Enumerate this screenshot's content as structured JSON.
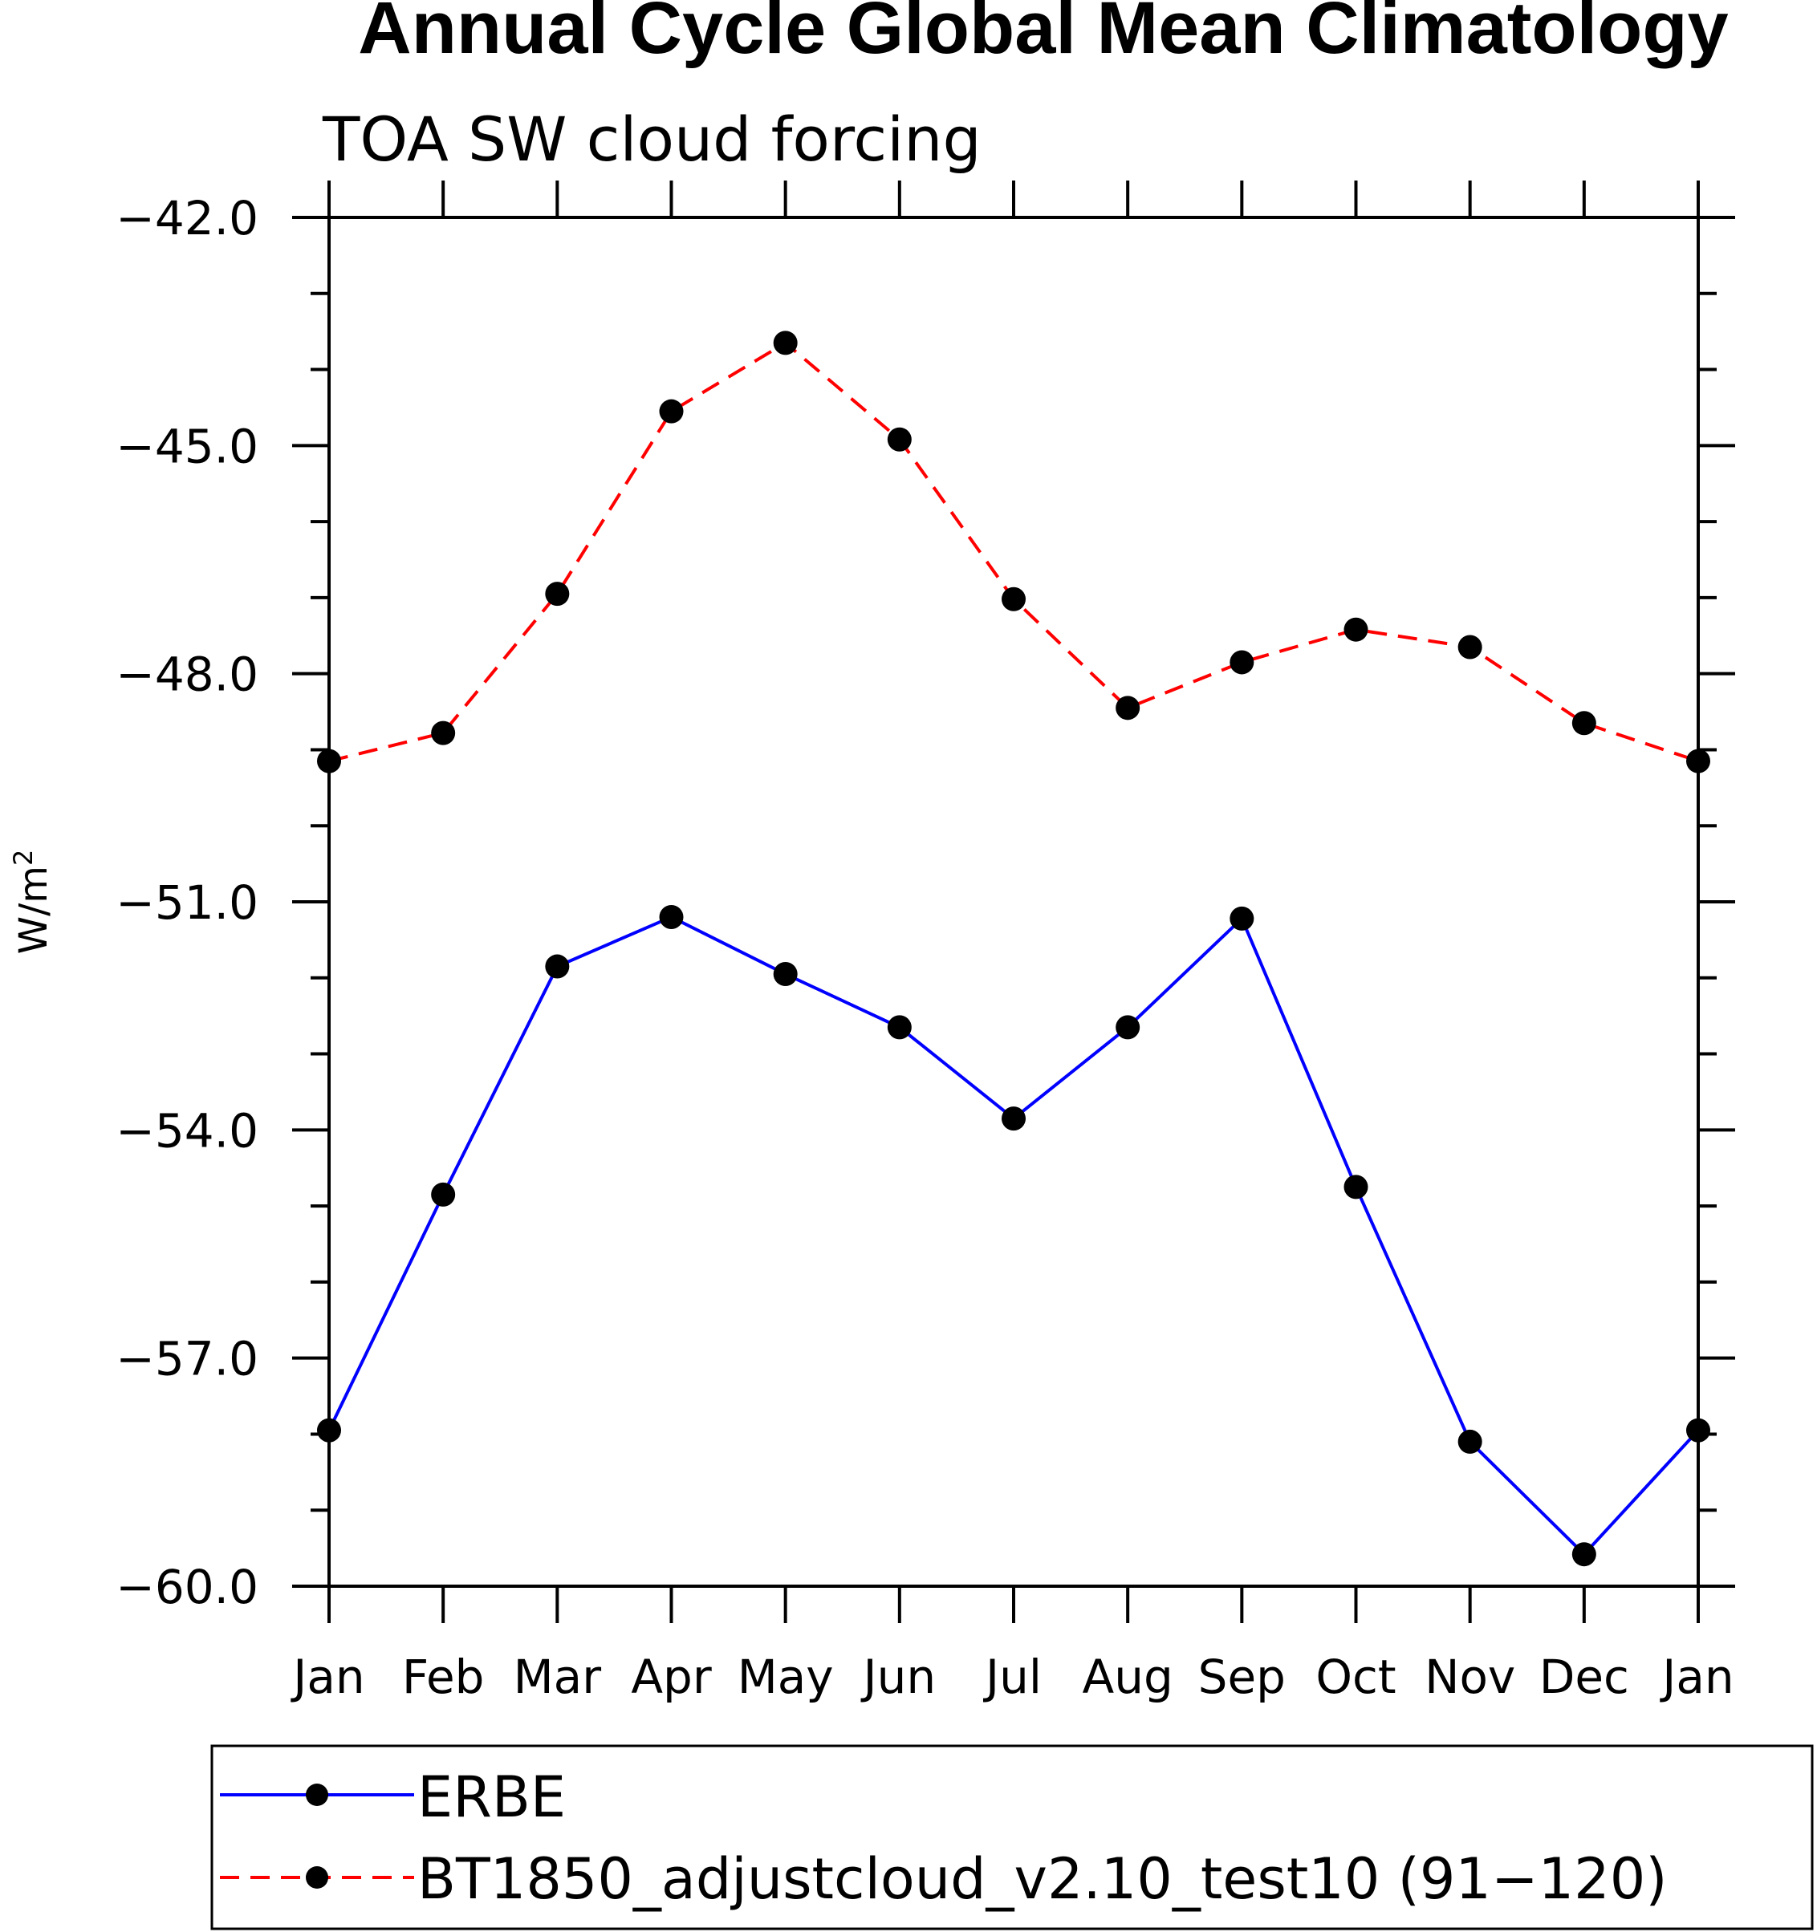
{
  "chart_data": {
    "type": "line",
    "title": "Annual Cycle Global Mean Climatology",
    "subtitle": "TOA SW cloud forcing",
    "xlabel": "",
    "ylabel": "W/m",
    "ylabel_superscript": "2",
    "categories": [
      "Jan",
      "Feb",
      "Mar",
      "Apr",
      "May",
      "Jun",
      "Jul",
      "Aug",
      "Sep",
      "Oct",
      "Nov",
      "Dec",
      "Jan"
    ],
    "ylim": [
      -60.0,
      -42.0
    ],
    "yticks": [
      -60.0,
      -57.0,
      -54.0,
      -51.0,
      -48.0,
      -45.0,
      -42.0
    ],
    "ytick_labels": [
      "−60.0",
      "−57.0",
      "−54.0",
      "−51.0",
      "−48.0",
      "−45.0",
      "−42.0"
    ],
    "series": [
      {
        "name": "ERBE",
        "color": "#0000ff",
        "dash": "solid",
        "values": [
          -57.95,
          -54.85,
          -51.85,
          -51.2,
          -51.95,
          -52.65,
          -53.85,
          -52.65,
          -51.22,
          -54.75,
          -58.1,
          -59.58,
          -57.95
        ]
      },
      {
        "name": "BT1850_adjustcloud_v2.10_test10 (91−120)",
        "color": "#ff0000",
        "dash": "dashed",
        "values": [
          -49.15,
          -48.78,
          -46.95,
          -44.55,
          -43.65,
          -44.92,
          -47.02,
          -48.45,
          -47.85,
          -47.42,
          -47.65,
          -48.65,
          -49.15
        ]
      }
    ],
    "legend": {
      "placement": "bottom",
      "entries": [
        "ERBE",
        "BT1850_adjustcloud_v2.10_test10 (91−120)"
      ]
    },
    "marker_color": "#000000"
  }
}
